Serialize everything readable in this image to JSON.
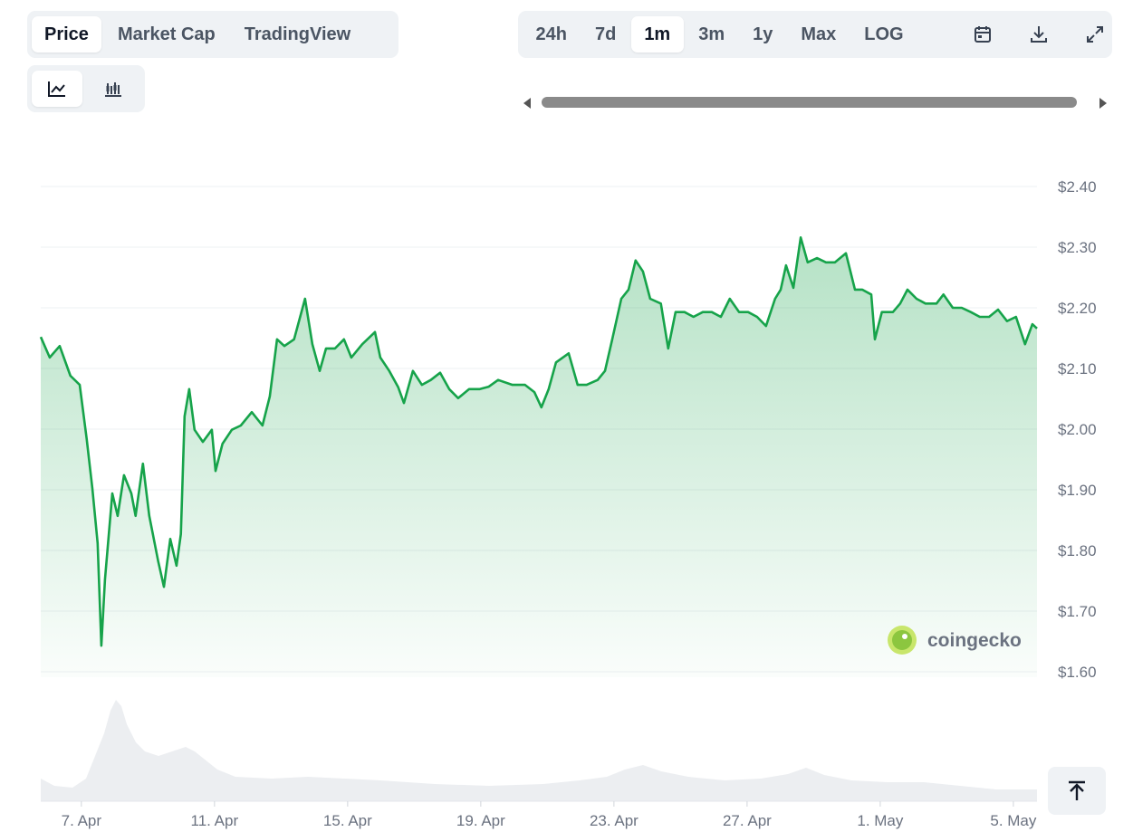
{
  "toolbar": {
    "tabs": [
      "Price",
      "Market Cap",
      "TradingView"
    ],
    "selected_tab": 0,
    "ranges": [
      "24h",
      "7d",
      "1m",
      "3m",
      "1y",
      "Max",
      "LOG"
    ],
    "selected_range": 2
  },
  "watermark": "coingecko",
  "chart_data": {
    "type": "area",
    "color": "#16a34a",
    "x": [
      5.78,
      6.05,
      6.35,
      6.67,
      6.95,
      7.16,
      7.33,
      7.49,
      7.6,
      7.71,
      7.93,
      8.09,
      8.28,
      8.5,
      8.63,
      8.85,
      9.04,
      9.31,
      9.48,
      9.67,
      9.86,
      9.99,
      10.1,
      10.24,
      10.4,
      10.65,
      10.92,
      11.03,
      11.24,
      11.52,
      11.79,
      12.12,
      12.44,
      12.66,
      12.88,
      13.1,
      13.39,
      13.72,
      13.94,
      14.16,
      14.35,
      14.62,
      14.89,
      15.11,
      15.44,
      15.82,
      15.98,
      16.25,
      16.52,
      16.69,
      16.96,
      17.23,
      17.5,
      17.78,
      18.05,
      18.32,
      18.65,
      18.97,
      19.24,
      19.52,
      19.95,
      20.33,
      20.61,
      20.82,
      21.04,
      21.26,
      21.64,
      21.91,
      22.18,
      22.51,
      22.73,
      22.95,
      23.22,
      23.44,
      23.65,
      23.87,
      24.09,
      24.41,
      24.63,
      24.85,
      25.12,
      25.39,
      25.67,
      25.94,
      26.21,
      26.48,
      26.76,
      27.03,
      27.3,
      27.57,
      27.84,
      28.01,
      28.17,
      28.39,
      28.61,
      28.82,
      29.1,
      29.37,
      29.64,
      29.97,
      30.24,
      30.46,
      30.73,
      30.84,
      31.05,
      31.38,
      31.6,
      31.82,
      32.09,
      32.36,
      32.69,
      32.9,
      33.18,
      33.45,
      33.72,
      33.99,
      34.27,
      34.54,
      34.81,
      35.08,
      35.35,
      35.57,
      35.71
    ],
    "values": [
      2.152,
      2.118,
      2.137,
      2.088,
      2.073,
      1.984,
      1.902,
      1.812,
      1.643,
      1.752,
      1.894,
      1.857,
      1.924,
      1.894,
      1.857,
      1.943,
      1.857,
      1.782,
      1.74,
      1.819,
      1.775,
      1.827,
      2.021,
      2.066,
      1.999,
      1.979,
      1.999,
      1.931,
      1.976,
      1.999,
      2.006,
      2.028,
      2.006,
      2.054,
      2.148,
      2.137,
      2.148,
      2.215,
      2.14,
      2.096,
      2.133,
      2.133,
      2.148,
      2.118,
      2.14,
      2.16,
      2.118,
      2.096,
      2.069,
      2.043,
      2.096,
      2.073,
      2.081,
      2.093,
      2.066,
      2.051,
      2.066,
      2.066,
      2.07,
      2.081,
      2.073,
      2.073,
      2.061,
      2.036,
      2.066,
      2.11,
      2.125,
      2.073,
      2.073,
      2.081,
      2.096,
      2.148,
      2.215,
      2.23,
      2.278,
      2.26,
      2.215,
      2.207,
      2.133,
      2.193,
      2.193,
      2.185,
      2.193,
      2.193,
      2.185,
      2.215,
      2.193,
      2.193,
      2.185,
      2.17,
      2.215,
      2.23,
      2.27,
      2.233,
      2.316,
      2.275,
      2.282,
      2.275,
      2.275,
      2.29,
      2.23,
      2.23,
      2.222,
      2.148,
      2.193,
      2.193,
      2.207,
      2.23,
      2.215,
      2.207,
      2.207,
      2.222,
      2.2,
      2.2,
      2.193,
      2.185,
      2.185,
      2.197,
      2.178,
      2.185,
      2.14,
      2.173,
      2.166
    ],
    "xlim": [
      5.78,
      35.71
    ],
    "xticks": [
      {
        "value": 7,
        "label": "7. Apr"
      },
      {
        "value": 11,
        "label": "11. Apr"
      },
      {
        "value": 15,
        "label": "15. Apr"
      },
      {
        "value": 19,
        "label": "19. Apr"
      },
      {
        "value": 23,
        "label": "23. Apr"
      },
      {
        "value": 27,
        "label": "27. Apr"
      },
      {
        "value": 31,
        "label": "1. May"
      },
      {
        "value": 35,
        "label": "5. May"
      }
    ],
    "ylim": [
      1.6,
      2.4
    ],
    "yticks": [
      {
        "value": 1.6,
        "label": "$1.60"
      },
      {
        "value": 1.7,
        "label": "$1.70"
      },
      {
        "value": 1.8,
        "label": "$1.80"
      },
      {
        "value": 1.9,
        "label": "$1.90"
      },
      {
        "value": 2.0,
        "label": "$2.00"
      },
      {
        "value": 2.1,
        "label": "$2.10"
      },
      {
        "value": 2.2,
        "label": "$2.20"
      },
      {
        "value": 2.3,
        "label": "$2.30"
      },
      {
        "value": 2.4,
        "label": "$2.40"
      }
    ],
    "grid": true
  }
}
